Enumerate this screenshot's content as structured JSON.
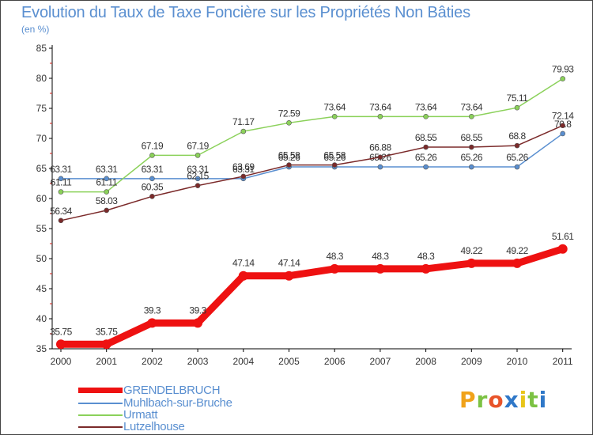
{
  "title": "Evolution du Taux de Taxe Foncière sur les Propriétés Non Bâties",
  "subtitle": "(en %)",
  "logo_text": "Proxiti",
  "colors": {
    "title": "#5a8fd0",
    "axis": "#000000",
    "tick_minor": "#d9201b",
    "logo": [
      "#f0a21a",
      "#7cc243",
      "#e8542a",
      "#2f78c8",
      "#e8c51a",
      "#7cc243",
      "#2f78c8"
    ]
  },
  "chart_data": {
    "type": "line",
    "x": [
      "2000",
      "2001",
      "2002",
      "2003",
      "2004",
      "2005",
      "2006",
      "2007",
      "2008",
      "2009",
      "2010",
      "2011"
    ],
    "ylim": [
      35,
      85
    ],
    "yticks": [
      35,
      40,
      45,
      50,
      55,
      60,
      65,
      70,
      75,
      80,
      85
    ],
    "xlabel": "",
    "ylabel": "(en %)",
    "series": [
      {
        "name": "Muhlbach-sur-Bruche",
        "color": "#5a8fd0",
        "values": [
          63.31,
          63.31,
          63.31,
          63.31,
          63.31,
          65.26,
          65.26,
          65.26,
          65.26,
          65.26,
          65.26,
          70.8
        ],
        "labels": [
          "63.31",
          "63.31",
          "63.31",
          "63.31",
          "63.31",
          "65.26",
          "65.26",
          "65.26",
          "65.26",
          "65.26",
          "65.26",
          "70.8"
        ]
      },
      {
        "name": "Urmatt",
        "color": "#8bd15a",
        "values": [
          61.11,
          61.11,
          67.19,
          67.19,
          71.17,
          72.59,
          73.64,
          73.64,
          73.64,
          73.64,
          75.11,
          79.93
        ],
        "labels": [
          "61.11",
          "61.11",
          "67.19",
          "67.19",
          "71.17",
          "72.59",
          "73.64",
          "73.64",
          "73.64",
          "73.64",
          "75.11",
          "79.93"
        ]
      },
      {
        "name": "Lutzelhouse",
        "color": "#7b2a2a",
        "values": [
          56.34,
          58.03,
          60.35,
          62.15,
          63.69,
          65.58,
          65.58,
          66.88,
          68.55,
          68.55,
          68.8,
          72.14
        ],
        "labels": [
          "56.34",
          "58.03",
          "60.35",
          "62.15",
          "63.69",
          "65.58",
          "65.58",
          "66.88",
          "68.55",
          "68.55",
          "68.8",
          "72.14"
        ]
      },
      {
        "name": "GRENDELBRUCH",
        "color": "#ee1111",
        "values": [
          35.75,
          35.75,
          39.3,
          39.3,
          47.14,
          47.14,
          48.3,
          48.3,
          48.3,
          49.22,
          49.22,
          51.61
        ],
        "labels": [
          "35.75",
          "35.75",
          "39.3",
          "39.3",
          "47.14",
          "47.14",
          "48.3",
          "48.3",
          "48.3",
          "49.22",
          "49.22",
          "51.61"
        ]
      }
    ],
    "legend": [
      "GRENDELBRUCH",
      "Muhlbach-sur-Bruche",
      "Urmatt",
      "Lutzelhouse"
    ],
    "legend_position": "bottom-left"
  }
}
